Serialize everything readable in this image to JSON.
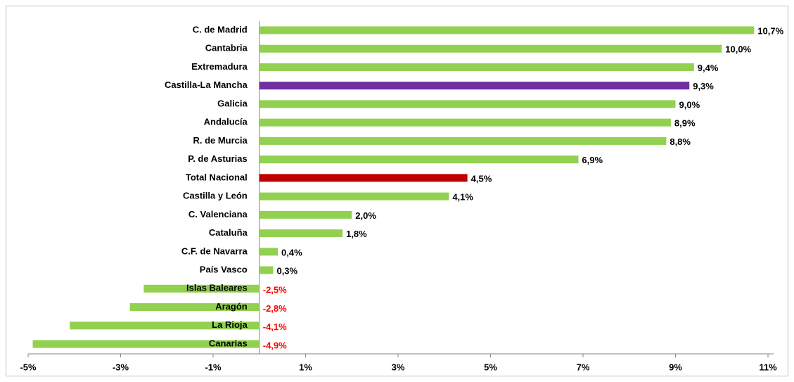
{
  "chart_data": {
    "type": "bar",
    "orientation": "horizontal",
    "categories": [
      "C. de Madrid",
      "Cantabria",
      "Extremadura",
      "Castilla-La Mancha",
      "Galicia",
      "Andalucía",
      "R. de Murcia",
      "P. de Asturias",
      "Total Nacional",
      "Castilla y León",
      "C. Valenciana",
      "Cataluña",
      "C.F. de Navarra",
      "País Vasco",
      "Islas Baleares",
      "Aragón",
      "La Rioja",
      "Canarias"
    ],
    "values": [
      10.7,
      10.0,
      9.4,
      9.3,
      9.0,
      8.9,
      8.8,
      6.9,
      4.5,
      4.1,
      2.0,
      1.8,
      0.4,
      0.3,
      -2.5,
      -2.8,
      -4.1,
      -4.9
    ],
    "value_labels": [
      "10,7%",
      "10,0%",
      "9,4%",
      "9,3%",
      "9,0%",
      "8,9%",
      "8,8%",
      "6,9%",
      "4,5%",
      "4,1%",
      "2,0%",
      "1,8%",
      "0,4%",
      "0,3%",
      "-2,5%",
      "-2,8%",
      "-4,1%",
      "-4,9%"
    ],
    "colors": [
      "#92d050",
      "#92d050",
      "#92d050",
      "#7030a0",
      "#92d050",
      "#92d050",
      "#92d050",
      "#92d050",
      "#c00000",
      "#92d050",
      "#92d050",
      "#92d050",
      "#92d050",
      "#92d050",
      "#92d050",
      "#92d050",
      "#92d050",
      "#92d050"
    ],
    "negative_label_color": "#ff0000",
    "xlim": [
      -5,
      11
    ],
    "xticks": [
      {
        "value": -5,
        "label": "-5%"
      },
      {
        "value": -3,
        "label": "-3%"
      },
      {
        "value": -1,
        "label": "-1%"
      },
      {
        "value": 1,
        "label": "1%"
      },
      {
        "value": 3,
        "label": "3%"
      },
      {
        "value": 5,
        "label": "5%"
      },
      {
        "value": 7,
        "label": "7%"
      },
      {
        "value": 9,
        "label": "9%"
      },
      {
        "value": 11,
        "label": "11%"
      }
    ],
    "grid": false
  }
}
